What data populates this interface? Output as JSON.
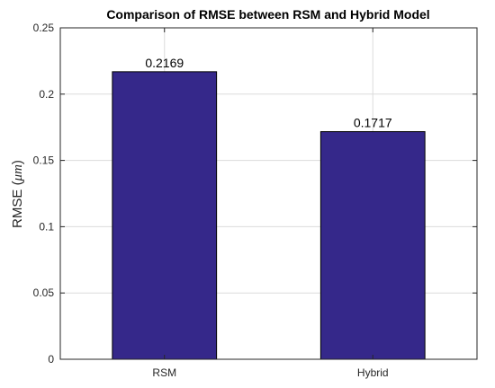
{
  "chart_data": {
    "type": "bar",
    "title": "Comparison of RMSE between RSM and Hybrid Model",
    "ylabel": "RMSE (",
    "ylabel_unit": "μm",
    "ylabel_close": ")",
    "xlabel": "",
    "categories": [
      "RSM",
      "Hybrid"
    ],
    "values": [
      0.2169,
      0.1717
    ],
    "data_labels": [
      "0.2169",
      "0.1717"
    ],
    "ylim": [
      0,
      0.25
    ],
    "yticks": [
      0,
      0.05,
      0.1,
      0.15,
      0.2,
      0.25
    ],
    "ytick_labels": [
      "0",
      "0.05",
      "0.1",
      "0.15",
      "0.2",
      "0.25"
    ],
    "bar_color": "#35288a",
    "grid": true
  }
}
